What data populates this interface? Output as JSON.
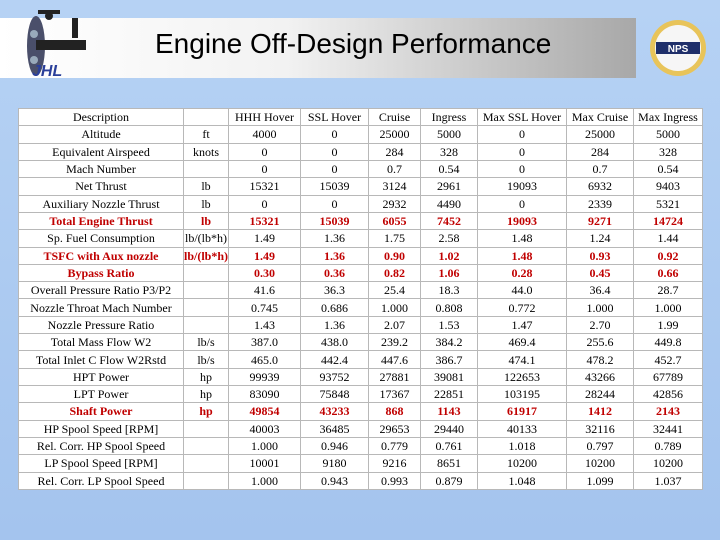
{
  "title": "Engine Off-Design Performance",
  "logos": {
    "left": "JHL",
    "right": "NPS"
  },
  "table": {
    "header": [
      "Description",
      "HHH Hover",
      "SSL Hover",
      "Cruise",
      "Ingress",
      "Max SSL Hover",
      "Max Cruise",
      "Max Ingress"
    ],
    "rows": [
      {
        "label": "Altitude",
        "unit": "ft",
        "values": [
          "4000",
          "0",
          "25000",
          "5000",
          "0",
          "25000",
          "5000"
        ]
      },
      {
        "label": "Equivalent Airspeed",
        "unit": "knots",
        "values": [
          "0",
          "0",
          "284",
          "328",
          "0",
          "284",
          "328"
        ]
      },
      {
        "label": "Mach Number",
        "values": [
          "0",
          "0",
          "0.7",
          "0.54",
          "0",
          "0.7",
          "0.54"
        ]
      },
      {
        "label": "Net Thrust",
        "unit": "lb",
        "values": [
          "15321",
          "15039",
          "3124",
          "2961",
          "19093",
          "6932",
          "9403"
        ]
      },
      {
        "label": "Auxiliary Nozzle Thrust",
        "unit": "lb",
        "values": [
          "0",
          "0",
          "2932",
          "4490",
          "0",
          "2339",
          "5321"
        ]
      },
      {
        "label": "Total Engine Thrust",
        "unit": "lb",
        "highlight": true,
        "values": [
          "15321",
          "15039",
          "6055",
          "7452",
          "19093",
          "9271",
          "14724"
        ]
      },
      {
        "label": "Sp. Fuel Consumption",
        "unit": "lb/(lb*h)",
        "values": [
          "1.49",
          "1.36",
          "1.75",
          "2.58",
          "1.48",
          "1.24",
          "1.44"
        ]
      },
      {
        "label": "TSFC with Aux nozzle",
        "unit": "lb/(lb*h)",
        "highlight": true,
        "values": [
          "1.49",
          "1.36",
          "0.90",
          "1.02",
          "1.48",
          "0.93",
          "0.92"
        ]
      },
      {
        "label": "Bypass Ratio",
        "highlight": true,
        "values": [
          "0.30",
          "0.36",
          "0.82",
          "1.06",
          "0.28",
          "0.45",
          "0.66"
        ]
      },
      {
        "label": "Overall Pressure Ratio P3/P2",
        "values": [
          "41.6",
          "36.3",
          "25.4",
          "18.3",
          "44.0",
          "36.4",
          "28.7"
        ]
      },
      {
        "label": "Nozzle Throat Mach Number",
        "values": [
          "0.745",
          "0.686",
          "1.000",
          "0.808",
          "0.772",
          "1.000",
          "1.000"
        ]
      },
      {
        "label": "Nozzle Pressure Ratio",
        "values": [
          "1.43",
          "1.36",
          "2.07",
          "1.53",
          "1.47",
          "2.70",
          "1.99"
        ]
      },
      {
        "label": "Total Mass Flow W2",
        "unit": "lb/s",
        "values": [
          "387.0",
          "438.0",
          "239.2",
          "384.2",
          "469.4",
          "255.6",
          "449.8"
        ]
      },
      {
        "label": "Total Inlet C Flow W2Rstd",
        "unit": "lb/s",
        "values": [
          "465.0",
          "442.4",
          "447.6",
          "386.7",
          "474.1",
          "478.2",
          "452.7"
        ]
      },
      {
        "label": "HPT Power",
        "unit": "hp",
        "values": [
          "99939",
          "93752",
          "27881",
          "39081",
          "122653",
          "43266",
          "67789"
        ]
      },
      {
        "label": "LPT Power",
        "unit": "hp",
        "values": [
          "83090",
          "75848",
          "17367",
          "22851",
          "103195",
          "28244",
          "42856"
        ]
      },
      {
        "label": "Shaft Power",
        "unit": "hp",
        "highlight": true,
        "values": [
          "49854",
          "43233",
          "868",
          "1143",
          "61917",
          "1412",
          "2143"
        ]
      },
      {
        "label": "HP Spool Speed [RPM]",
        "values": [
          "40003",
          "36485",
          "29653",
          "29440",
          "40133",
          "32116",
          "32441"
        ]
      },
      {
        "label": "Rel. Corr. HP Spool Speed",
        "values": [
          "1.000",
          "0.946",
          "0.779",
          "0.761",
          "1.018",
          "0.797",
          "0.789"
        ]
      },
      {
        "label": "LP Spool Speed [RPM]",
        "values": [
          "10001",
          "9180",
          "9216",
          "8651",
          "10200",
          "10200",
          "10200"
        ]
      },
      {
        "label": "Rel. Corr. LP Spool Speed",
        "values": [
          "1.000",
          "0.943",
          "0.993",
          "0.879",
          "1.048",
          "1.099",
          "1.037"
        ]
      }
    ]
  }
}
